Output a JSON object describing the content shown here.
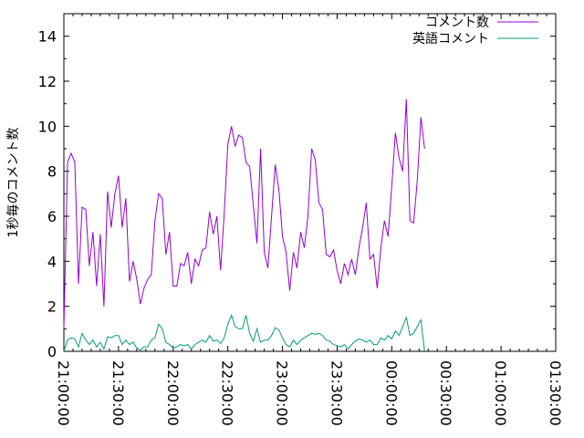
{
  "chart_data": {
    "type": "line",
    "title": "",
    "xlabel": "",
    "ylabel": "1秒毎のコメント数",
    "ylim": [
      0,
      15
    ],
    "yticks": [
      0,
      2,
      4,
      6,
      8,
      10,
      12,
      14
    ],
    "xlim": [
      "21:00:00",
      "01:30:00"
    ],
    "xticks": [
      "21:00:00",
      "21:30:00",
      "22:00:00",
      "22:30:00",
      "23:00:00",
      "23:30:00",
      "00:00:00",
      "00:30:00",
      "01:00:00",
      "01:30:00"
    ],
    "grid": false,
    "legend": "top-right",
    "sample_interval_minutes": 2,
    "series": [
      {
        "name": "コメント数",
        "color": "#9400d3",
        "values": [
          1.0,
          8.4,
          8.8,
          8.4,
          3.0,
          6.4,
          6.3,
          3.8,
          5.3,
          2.9,
          5.2,
          2.0,
          7.1,
          5.5,
          7.0,
          7.8,
          5.5,
          6.8,
          3.1,
          4.0,
          3.2,
          2.1,
          2.8,
          3.2,
          3.4,
          5.8,
          7.0,
          6.8,
          4.3,
          5.3,
          2.9,
          2.9,
          3.9,
          3.8,
          4.4,
          3.0,
          4.1,
          3.8,
          4.5,
          4.6,
          6.2,
          5.2,
          6.0,
          3.6,
          6.1,
          9.2,
          10.0,
          9.1,
          9.6,
          9.5,
          8.4,
          8.2,
          6.5,
          4.8,
          9.0,
          4.4,
          3.7,
          6.0,
          8.3,
          7.2,
          5.1,
          4.4,
          2.7,
          4.4,
          3.7,
          5.3,
          4.6,
          6.0,
          9.0,
          8.5,
          6.6,
          6.3,
          4.3,
          4.2,
          4.5,
          3.6,
          3.0,
          3.9,
          3.4,
          4.1,
          3.4,
          4.6,
          5.5,
          6.6,
          4.1,
          4.3,
          2.8,
          4.6,
          5.8,
          5.1,
          7.3,
          9.7,
          8.6,
          8.0,
          11.2,
          5.8,
          5.7,
          7.6,
          10.4,
          9.0
        ]
      },
      {
        "name": "英語コメント",
        "color": "#009e73",
        "values": [
          0.0,
          0.5,
          0.6,
          0.55,
          0.2,
          0.8,
          0.5,
          0.3,
          0.5,
          0.2,
          0.4,
          0.1,
          0.65,
          0.6,
          0.7,
          0.7,
          0.3,
          0.5,
          0.3,
          0.4,
          0.15,
          0.05,
          0.2,
          0.2,
          0.5,
          0.6,
          1.2,
          1.0,
          0.4,
          0.3,
          0.15,
          0.2,
          0.3,
          0.25,
          0.3,
          0.1,
          0.3,
          0.4,
          0.5,
          0.4,
          0.7,
          0.45,
          0.5,
          0.35,
          0.6,
          1.2,
          1.6,
          1.1,
          1.0,
          1.0,
          1.6,
          0.8,
          0.45,
          1.0,
          0.4,
          0.5,
          0.5,
          0.7,
          1.05,
          0.95,
          0.6,
          0.3,
          0.2,
          0.5,
          0.3,
          0.5,
          0.6,
          0.7,
          0.8,
          0.75,
          0.8,
          0.7,
          0.5,
          0.45,
          0.3,
          0.25,
          0.2,
          0.3,
          0.1,
          0.3,
          0.45,
          0.55,
          0.5,
          0.4,
          0.5,
          0.3,
          0.3,
          0.6,
          0.5,
          0.7,
          0.55,
          0.9,
          0.7,
          1.1,
          1.5,
          0.7,
          0.8,
          1.1,
          1.4,
          0.0
        ]
      }
    ]
  }
}
